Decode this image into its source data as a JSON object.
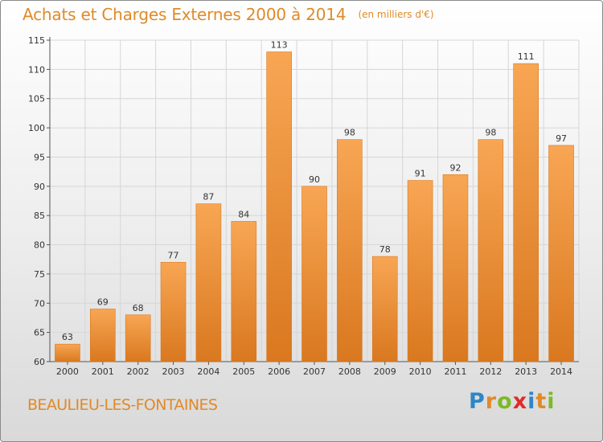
{
  "title": "Achats et Charges Externes 2000 à 2014",
  "unit": "(en milliers d'€)",
  "commune": "BEAULIEU-LES-FONTAINES",
  "brand": "Proxiti",
  "colors": {
    "accent": "#e08a28",
    "bar_top": "#f8a654",
    "bar_bottom": "#d9781f",
    "brand_letters": [
      "#2e86c8",
      "#e08a28",
      "#7cb928",
      "#e02b2b",
      "#2e86c8",
      "#e08a28",
      "#7cb928"
    ]
  },
  "chart_data": {
    "type": "bar",
    "categories": [
      "2000",
      "2001",
      "2002",
      "2003",
      "2004",
      "2005",
      "2006",
      "2007",
      "2008",
      "2009",
      "2010",
      "2011",
      "2012",
      "2013",
      "2014"
    ],
    "values": [
      63,
      69,
      68,
      77,
      87,
      84,
      113,
      90,
      98,
      78,
      91,
      92,
      98,
      111,
      97
    ],
    "ylim": [
      60,
      115
    ],
    "yticks": [
      60,
      65,
      70,
      75,
      80,
      85,
      90,
      95,
      100,
      105,
      110,
      115
    ],
    "grid": true,
    "data_labels": true
  }
}
